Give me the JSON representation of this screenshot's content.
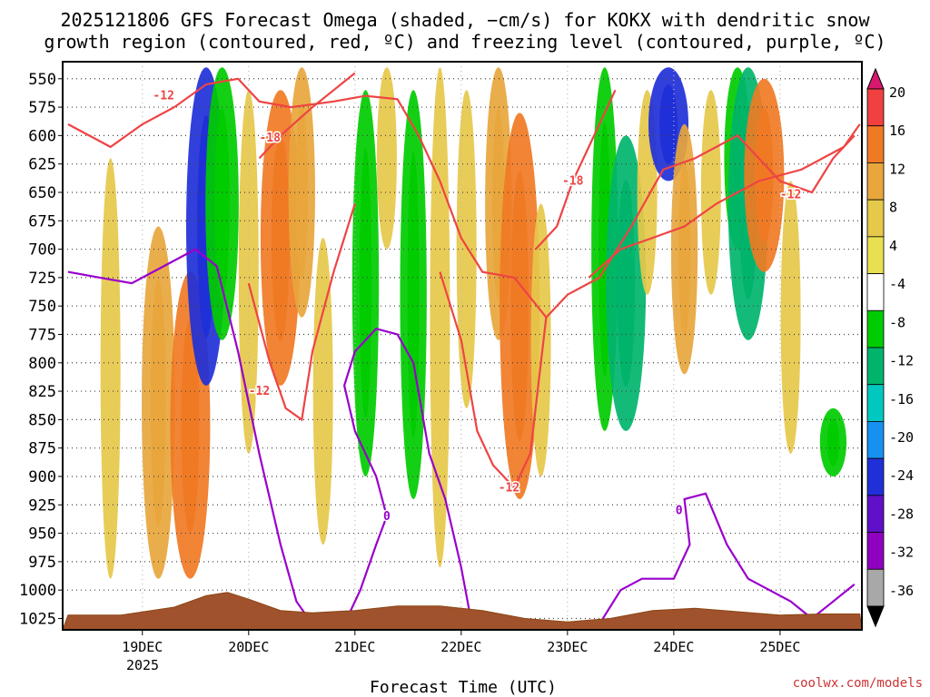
{
  "chart_data": {
    "type": "heatmap",
    "title_line1": "2025121806 GFS Forecast Omega (shaded, −cm/s) for KOKX with dendritic snow",
    "title_line2": "growth region (contoured, red, ºC) and freezing level (contoured, purple, ºC)",
    "xlabel": "Forecast Time (UTC)",
    "credit": "coolwx.com/models",
    "x_ticks": [
      "19DEC",
      "20DEC",
      "21DEC",
      "22DEC",
      "23DEC",
      "24DEC",
      "25DEC"
    ],
    "x_year_label": "2025",
    "y_ticks": [
      "550",
      "575",
      "600",
      "625",
      "650",
      "675",
      "700",
      "725",
      "750",
      "775",
      "800",
      "825",
      "850",
      "875",
      "900",
      "925",
      "950",
      "975",
      "1000",
      "1025"
    ],
    "ylim": [
      535,
      1035
    ],
    "colorbar": {
      "ticks": [
        "20",
        "16",
        "12",
        "8",
        "4",
        "-4",
        "-8",
        "-12",
        "-16",
        "-20",
        "-24",
        "-28",
        "-32",
        "-36"
      ],
      "colors": [
        "#d8186c",
        "#f04040",
        "#f07a24",
        "#e8a63c",
        "#e6c84a",
        "#e8e050",
        "#ffffff",
        "#00cc00",
        "#00b46c",
        "#00c8c0",
        "#1890f0",
        "#2030d8",
        "#6010c8",
        "#9000c0",
        "#a8a8a8",
        "#000000"
      ]
    },
    "omega_blobs": [
      {
        "t": 18.7,
        "p1": 620,
        "p2": 990,
        "v": 6
      },
      {
        "t": 19.15,
        "p1": 680,
        "p2": 990,
        "v": 10
      },
      {
        "t": 19.45,
        "p1": 720,
        "p2": 990,
        "v": 14
      },
      {
        "t": 19.6,
        "p1": 540,
        "p2": 820,
        "v": -22
      },
      {
        "t": 19.75,
        "p1": 540,
        "p2": 780,
        "v": -10
      },
      {
        "t": 20.0,
        "p1": 560,
        "p2": 880,
        "v": 6
      },
      {
        "t": 20.3,
        "p1": 560,
        "p2": 820,
        "v": 12
      },
      {
        "t": 20.5,
        "p1": 540,
        "p2": 760,
        "v": 8
      },
      {
        "t": 20.7,
        "p1": 690,
        "p2": 960,
        "v": 6
      },
      {
        "t": 21.1,
        "p1": 560,
        "p2": 900,
        "v": -8
      },
      {
        "t": 21.3,
        "p1": 540,
        "p2": 700,
        "v": 6
      },
      {
        "t": 21.55,
        "p1": 560,
        "p2": 920,
        "v": -8
      },
      {
        "t": 21.8,
        "p1": 540,
        "p2": 980,
        "v": 6
      },
      {
        "t": 22.05,
        "p1": 560,
        "p2": 840,
        "v": 6
      },
      {
        "t": 22.35,
        "p1": 540,
        "p2": 780,
        "v": 8
      },
      {
        "t": 22.55,
        "p1": 580,
        "p2": 920,
        "v": 12
      },
      {
        "t": 22.75,
        "p1": 660,
        "p2": 900,
        "v": 6
      },
      {
        "t": 23.35,
        "p1": 540,
        "p2": 860,
        "v": -8
      },
      {
        "t": 23.55,
        "p1": 600,
        "p2": 860,
        "v": -12
      },
      {
        "t": 23.75,
        "p1": 560,
        "p2": 740,
        "v": 6
      },
      {
        "t": 23.95,
        "p1": 540,
        "p2": 640,
        "v": -22
      },
      {
        "t": 24.1,
        "p1": 590,
        "p2": 810,
        "v": 8
      },
      {
        "t": 24.35,
        "p1": 560,
        "p2": 740,
        "v": 6
      },
      {
        "t": 24.6,
        "p1": 540,
        "p2": 700,
        "v": -8
      },
      {
        "t": 24.7,
        "p1": 540,
        "p2": 780,
        "v": -12
      },
      {
        "t": 24.85,
        "p1": 550,
        "p2": 720,
        "v": 14
      },
      {
        "t": 25.1,
        "p1": 640,
        "p2": 880,
        "v": 6
      },
      {
        "t": 25.5,
        "p1": 840,
        "p2": 900,
        "v": -8
      }
    ],
    "red_contours": [
      {
        "level": -12,
        "points": [
          [
            18.3,
            590
          ],
          [
            18.7,
            610
          ],
          [
            19.0,
            590
          ],
          [
            19.3,
            575
          ],
          [
            19.6,
            555
          ],
          [
            19.9,
            550
          ],
          [
            20.1,
            570
          ],
          [
            20.4,
            575
          ],
          [
            20.8,
            570
          ],
          [
            21.1,
            565
          ],
          [
            21.4,
            568
          ],
          [
            21.6,
            600
          ],
          [
            21.8,
            640
          ],
          [
            22.0,
            690
          ],
          [
            22.2,
            720
          ],
          [
            22.5,
            725
          ],
          [
            22.8,
            760
          ],
          [
            23.0,
            740
          ],
          [
            23.3,
            725
          ],
          [
            23.6,
            680
          ],
          [
            23.9,
            630
          ],
          [
            24.2,
            620
          ],
          [
            24.6,
            600
          ],
          [
            25.0,
            640
          ],
          [
            25.3,
            650
          ],
          [
            25.5,
            620
          ],
          [
            25.7,
            600
          ]
        ],
        "label_t": 19.2,
        "label_p": 565
      },
      {
        "level": -18,
        "points": [
          [
            20.1,
            620
          ],
          [
            20.3,
            600
          ],
          [
            20.6,
            575
          ],
          [
            20.8,
            560
          ],
          [
            21.0,
            545
          ]
        ],
        "label_t": 20.2,
        "label_p": 602
      },
      {
        "level": -12,
        "points": [
          [
            20.0,
            730
          ],
          [
            20.2,
            800
          ],
          [
            20.35,
            840
          ],
          [
            20.5,
            850
          ],
          [
            20.6,
            790
          ],
          [
            20.8,
            720
          ],
          [
            21.0,
            660
          ]
        ],
        "label_t": 20.1,
        "label_p": 825
      },
      {
        "level": -12,
        "points": [
          [
            21.8,
            720
          ],
          [
            22.0,
            780
          ],
          [
            22.15,
            860
          ],
          [
            22.3,
            890
          ],
          [
            22.5,
            910
          ],
          [
            22.65,
            880
          ],
          [
            22.8,
            760
          ]
        ],
        "label_t": 22.45,
        "label_p": 910
      },
      {
        "level": -18,
        "points": [
          [
            22.7,
            700
          ],
          [
            22.9,
            680
          ],
          [
            23.05,
            640
          ],
          [
            23.2,
            610
          ],
          [
            23.45,
            560
          ]
        ],
        "label_t": 23.05,
        "label_p": 640
      },
      {
        "level": -12,
        "points": [
          [
            23.2,
            725
          ],
          [
            23.5,
            700
          ],
          [
            23.8,
            690
          ],
          [
            24.1,
            680
          ],
          [
            24.4,
            660
          ],
          [
            24.8,
            640
          ],
          [
            25.2,
            630
          ],
          [
            25.6,
            610
          ],
          [
            25.75,
            590
          ]
        ],
        "label_t": 25.1,
        "label_p": 652
      }
    ],
    "purple_contours": [
      {
        "level": 0,
        "points": [
          [
            18.3,
            720
          ],
          [
            18.6,
            725
          ],
          [
            18.9,
            730
          ],
          [
            19.2,
            715
          ],
          [
            19.5,
            700
          ],
          [
            19.7,
            715
          ],
          [
            19.9,
            790
          ],
          [
            20.1,
            880
          ],
          [
            20.3,
            960
          ],
          [
            20.45,
            1010
          ],
          [
            20.6,
            1030
          ]
        ],
        "label_t": null,
        "label_p": null
      },
      {
        "level": 0,
        "points": [
          [
            20.9,
            1030
          ],
          [
            21.05,
            1000
          ],
          [
            21.2,
            960
          ],
          [
            21.3,
            935
          ],
          [
            21.2,
            900
          ],
          [
            21.0,
            860
          ],
          [
            20.9,
            820
          ],
          [
            21.0,
            790
          ],
          [
            21.2,
            770
          ],
          [
            21.4,
            775
          ],
          [
            21.55,
            800
          ],
          [
            21.7,
            880
          ],
          [
            21.85,
            920
          ],
          [
            22.0,
            980
          ],
          [
            22.1,
            1030
          ]
        ],
        "label_t": 21.3,
        "label_p": 935
      },
      {
        "level": 0,
        "points": [
          [
            23.3,
            1030
          ],
          [
            23.5,
            1000
          ],
          [
            23.7,
            990
          ],
          [
            24.0,
            990
          ],
          [
            24.15,
            960
          ],
          [
            24.1,
            920
          ],
          [
            24.3,
            915
          ],
          [
            24.5,
            960
          ],
          [
            24.7,
            990
          ],
          [
            24.9,
            1000
          ],
          [
            25.1,
            1010
          ],
          [
            25.3,
            1025
          ],
          [
            25.5,
            1010
          ],
          [
            25.7,
            995
          ]
        ],
        "label_t": 24.05,
        "label_p": 930
      }
    ],
    "terrain": [
      [
        18.3,
        1022
      ],
      [
        18.8,
        1022
      ],
      [
        19.3,
        1015
      ],
      [
        19.6,
        1005
      ],
      [
        19.8,
        1002
      ],
      [
        20.0,
        1008
      ],
      [
        20.3,
        1018
      ],
      [
        20.6,
        1020
      ],
      [
        21.0,
        1018
      ],
      [
        21.4,
        1014
      ],
      [
        21.8,
        1014
      ],
      [
        22.2,
        1018
      ],
      [
        22.6,
        1025
      ],
      [
        23.0,
        1028
      ],
      [
        23.4,
        1025
      ],
      [
        23.8,
        1018
      ],
      [
        24.2,
        1016
      ],
      [
        24.6,
        1019
      ],
      [
        25.0,
        1022
      ],
      [
        25.4,
        1021
      ],
      [
        25.75,
        1021
      ]
    ]
  }
}
